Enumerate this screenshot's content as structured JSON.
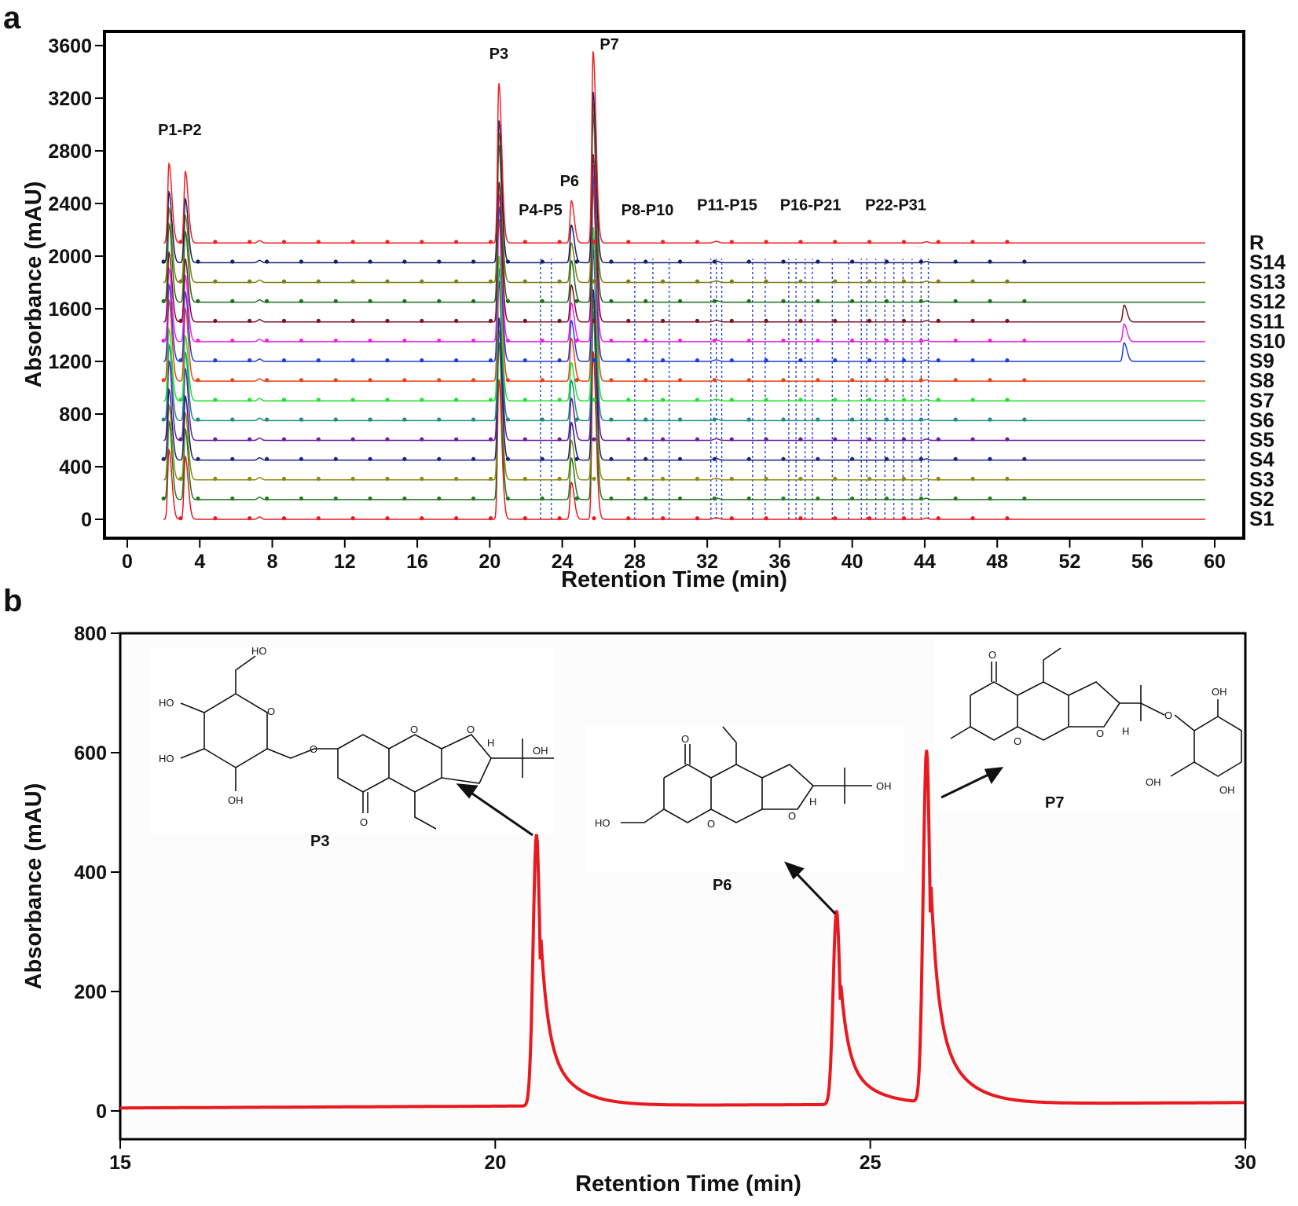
{
  "panel_a_letter": "a",
  "panel_b_letter": "b",
  "chart_data": [
    {
      "panel": "a",
      "type": "line",
      "xlabel": "Retention Time (min)",
      "ylabel": "Absorbance (mAU)",
      "xlim": [
        0,
        60
      ],
      "ylim": [
        -60,
        3700
      ],
      "x_ticks": [
        0,
        4,
        8,
        12,
        16,
        20,
        24,
        28,
        32,
        36,
        40,
        44,
        48,
        52,
        56,
        60
      ],
      "y_ticks": [
        0,
        400,
        800,
        1200,
        1600,
        2000,
        2400,
        2800,
        3200,
        3600
      ],
      "grid": false,
      "legend": "right, stacked labels",
      "series": [
        {
          "name": "S1",
          "color": "#e8191f",
          "baseline": 0
        },
        {
          "name": "S2",
          "color": "#1e7a1e",
          "baseline": 150
        },
        {
          "name": "S3",
          "color": "#8a8a12",
          "baseline": 300
        },
        {
          "name": "S4",
          "color": "#1a237e",
          "baseline": 450
        },
        {
          "name": "S5",
          "color": "#6a1b9a",
          "baseline": 600
        },
        {
          "name": "S6",
          "color": "#1b8a82",
          "baseline": 750
        },
        {
          "name": "S7",
          "color": "#22e02e",
          "baseline": 900
        },
        {
          "name": "S8",
          "color": "#e8431c",
          "baseline": 1050
        },
        {
          "name": "S9",
          "color": "#1f3fd8",
          "baseline": 1200
        },
        {
          "name": "S10",
          "color": "#ee22e6",
          "baseline": 1350
        },
        {
          "name": "S11",
          "color": "#7a1424",
          "baseline": 1500
        },
        {
          "name": "S12",
          "color": "#1c6e1c",
          "baseline": 1650
        },
        {
          "name": "S13",
          "color": "#7d7d14",
          "baseline": 1800
        },
        {
          "name": "S14",
          "color": "#141e6e",
          "baseline": 1950
        },
        {
          "name": "R",
          "color": "#ee2222",
          "baseline": 2100
        }
      ],
      "peaks": [
        {
          "rt": 2.3,
          "height": 620
        },
        {
          "rt": 3.2,
          "height": 560
        },
        {
          "rt": 20.5,
          "height": 1250
        },
        {
          "rt": 24.5,
          "height": 330
        },
        {
          "rt": 25.7,
          "height": 1500
        },
        {
          "rt": 55.0,
          "height": 150
        }
      ],
      "peak_labels": [
        {
          "text": "P1-P2",
          "x": 2.9,
          "y": 2920
        },
        {
          "text": "P3",
          "x": 20.5,
          "y": 3500
        },
        {
          "text": "P4-P5",
          "x": 22.8,
          "y": 2310
        },
        {
          "text": "P6",
          "x": 24.4,
          "y": 2530
        },
        {
          "text": "P7",
          "x": 26.6,
          "y": 3570
        },
        {
          "text": "P8-P10",
          "x": 28.7,
          "y": 2310
        },
        {
          "text": "P11-P15",
          "x": 33.1,
          "y": 2350
        },
        {
          "text": "P16-P21",
          "x": 37.7,
          "y": 2350
        },
        {
          "text": "P22-P31",
          "x": 42.4,
          "y": 2350
        }
      ],
      "dashed_markers_rt": [
        22.8,
        23.4,
        28.0,
        29.0,
        29.9,
        32.2,
        32.5,
        32.8,
        34.5,
        35.2,
        36.5,
        36.9,
        37.4,
        37.8,
        38.9,
        39.8,
        40.5,
        40.8,
        41.3,
        41.8,
        42.3,
        42.8,
        43.3,
        43.8,
        44.2
      ]
    },
    {
      "panel": "b",
      "type": "line",
      "xlabel": "Retention Time (min)",
      "ylabel": "Absorbance (mAU)",
      "xlim": [
        15,
        30
      ],
      "ylim": [
        0,
        800
      ],
      "x_ticks": [
        15,
        20,
        25,
        30
      ],
      "y_ticks": [
        0,
        200,
        400,
        600,
        800
      ],
      "grid": false,
      "series_color": "#e8191f",
      "peaks": [
        {
          "label": "P3",
          "rt": 20.55,
          "height": 455
        },
        {
          "label": "P6",
          "rt": 24.55,
          "height": 325
        },
        {
          "label": "P7",
          "rt": 25.75,
          "height": 590
        }
      ],
      "compound_labels": [
        "P3",
        "P6",
        "P7"
      ]
    }
  ],
  "chem_labels": {
    "ho": "HO",
    "oh": "OH",
    "o": "O",
    "h": "H"
  }
}
